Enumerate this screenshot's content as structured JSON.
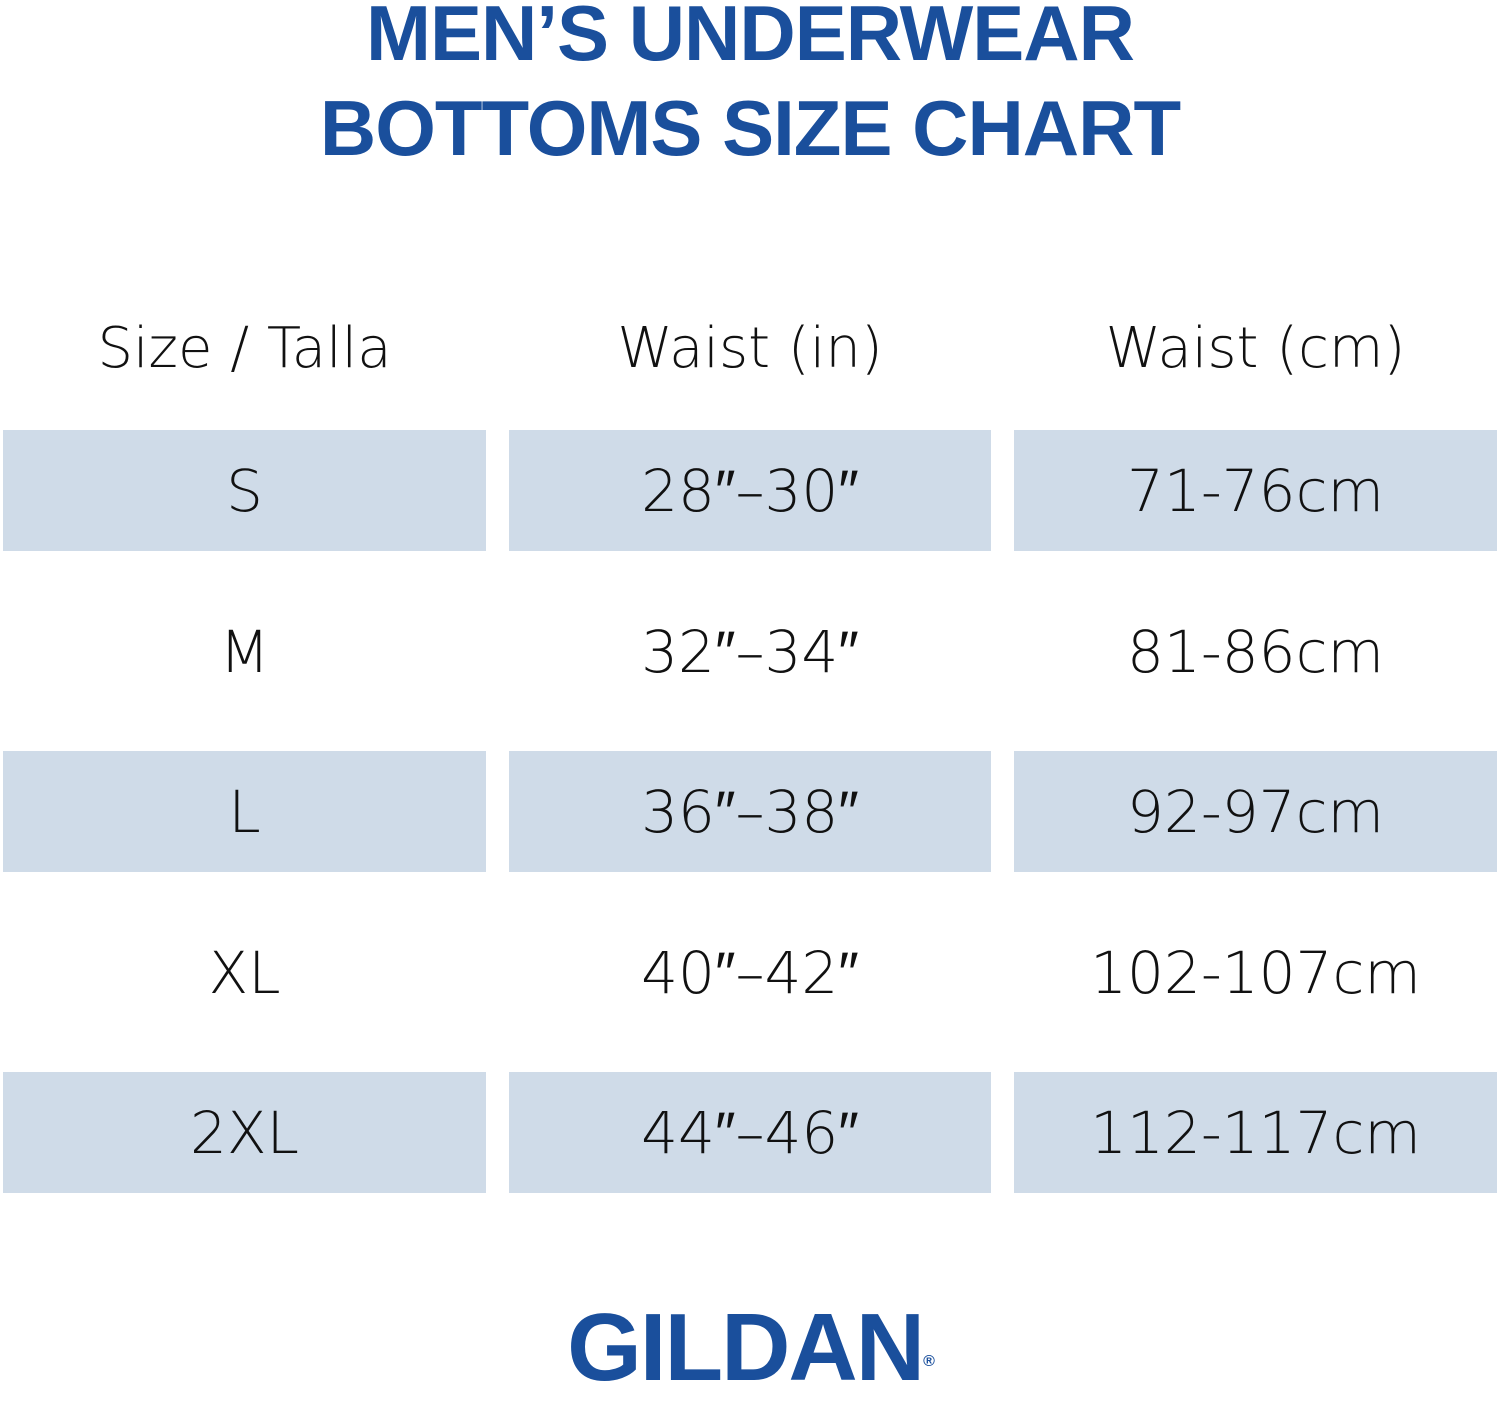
{
  "title": {
    "line1": "MEN’S UNDERWEAR",
    "line2": "BOTTOMS SIZE CHART"
  },
  "colors": {
    "title": "#1a4f9c",
    "row_band": "#cfdbe8"
  },
  "table": {
    "headers": [
      "Size / Talla",
      "Waist (in)",
      "Waist (cm)"
    ],
    "rows": [
      [
        "S",
        "28″–30″",
        "71-76cm"
      ],
      [
        "M",
        "32″–34″",
        "81-86cm"
      ],
      [
        "L",
        "36″–38″",
        "92-97cm"
      ],
      [
        "XL",
        "40″–42″",
        "102-107cm"
      ],
      [
        "2XL",
        "44″–46″",
        "112-117cm"
      ]
    ]
  },
  "logo": {
    "text": "GILDAN",
    "mark": "®"
  }
}
